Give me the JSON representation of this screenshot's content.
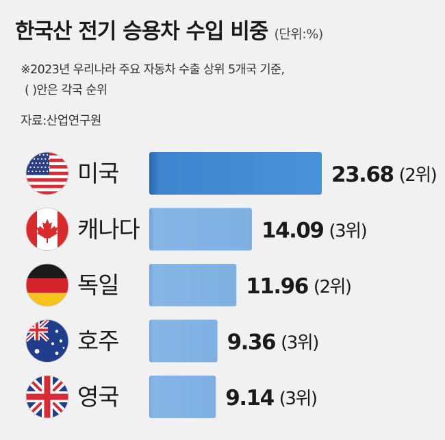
{
  "header": {
    "title": "한국산 전기 승용차 수입 비중",
    "unit": "(단위:%)",
    "note_line1": "※2023년 우리나라 주요 자동차 수출 상위 5개국 기준,",
    "note_line2": "( )안은 각국 순위",
    "source": "자료:산업연구원"
  },
  "chart_data": {
    "type": "bar",
    "orientation": "horizontal",
    "categories": [
      "미국",
      "캐나다",
      "독일",
      "호주",
      "영국"
    ],
    "values": [
      23.68,
      14.09,
      11.96,
      9.36,
      9.14
    ],
    "value_labels": [
      "23.68",
      "14.09",
      "11.96",
      "9.36",
      "9.14"
    ],
    "ranks": [
      "(2위)",
      "(3위)",
      "(2위)",
      "(3위)",
      "(3위)"
    ],
    "flags": [
      "usa-flag-icon",
      "canada-flag-icon",
      "germany-flag-icon",
      "australia-flag-icon",
      "uk-flag-icon"
    ],
    "colors": {
      "highlight": "#3a84cc",
      "bar": "#7fb0e0",
      "bar_edge": "#5d97d2"
    }
  }
}
